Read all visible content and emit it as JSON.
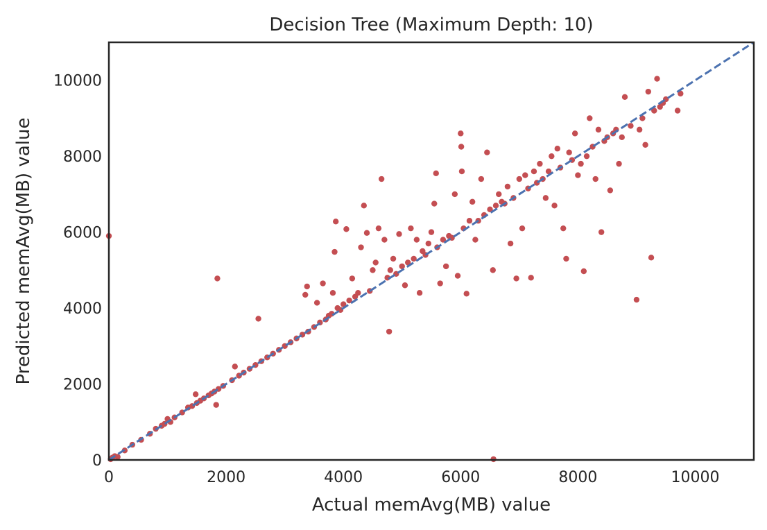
{
  "chart_data": {
    "type": "scatter",
    "title": "Decision Tree (Maximum Depth: 10)",
    "xlabel": "Actual memAvg(MB) value",
    "ylabel": "Predicted memAvg(MB) value",
    "xlim": [
      0,
      11000
    ],
    "ylim": [
      0,
      11000
    ],
    "xticks": [
      0,
      2000,
      4000,
      6000,
      8000,
      10000
    ],
    "yticks": [
      0,
      2000,
      4000,
      6000,
      8000,
      10000
    ],
    "xtick_labels": [
      "0",
      "2000",
      "4000",
      "6000",
      "8000",
      "10000"
    ],
    "ytick_labels": [
      "0",
      "2000",
      "4000",
      "6000",
      "8000",
      "10000"
    ],
    "grid": false,
    "legend": "none",
    "reference_line": {
      "style": "dashed",
      "from": [
        0,
        0
      ],
      "to": [
        11000,
        11000
      ],
      "color": "#4c72b0"
    },
    "point_color": "#c44e52",
    "series": [
      {
        "points": [
          [
            0,
            5900
          ],
          [
            30,
            20
          ],
          [
            60,
            60
          ],
          [
            100,
            100
          ],
          [
            150,
            80
          ],
          [
            270,
            250
          ],
          [
            400,
            400
          ],
          [
            550,
            530
          ],
          [
            700,
            690
          ],
          [
            800,
            820
          ],
          [
            900,
            900
          ],
          [
            950,
            950
          ],
          [
            1000,
            1080
          ],
          [
            1050,
            1000
          ],
          [
            1120,
            1120
          ],
          [
            1250,
            1250
          ],
          [
            1350,
            1380
          ],
          [
            1420,
            1420
          ],
          [
            1480,
            1730
          ],
          [
            1500,
            1500
          ],
          [
            1560,
            1560
          ],
          [
            1620,
            1620
          ],
          [
            1700,
            1700
          ],
          [
            1750,
            1750
          ],
          [
            1800,
            1800
          ],
          [
            1830,
            1450
          ],
          [
            1850,
            4780
          ],
          [
            1870,
            1870
          ],
          [
            1950,
            1950
          ],
          [
            2100,
            2100
          ],
          [
            2150,
            2460
          ],
          [
            2220,
            2220
          ],
          [
            2300,
            2300
          ],
          [
            2400,
            2400
          ],
          [
            2500,
            2500
          ],
          [
            2550,
            3720
          ],
          [
            2600,
            2600
          ],
          [
            2700,
            2700
          ],
          [
            2800,
            2800
          ],
          [
            2900,
            2900
          ],
          [
            3000,
            3000
          ],
          [
            3100,
            3100
          ],
          [
            3200,
            3200
          ],
          [
            3300,
            3300
          ],
          [
            3350,
            4350
          ],
          [
            3380,
            4570
          ],
          [
            3400,
            3380
          ],
          [
            3500,
            3500
          ],
          [
            3550,
            4140
          ],
          [
            3600,
            3620
          ],
          [
            3650,
            4650
          ],
          [
            3700,
            3700
          ],
          [
            3750,
            3800
          ],
          [
            3800,
            3850
          ],
          [
            3820,
            4400
          ],
          [
            3850,
            5480
          ],
          [
            3870,
            6280
          ],
          [
            3900,
            4000
          ],
          [
            3950,
            3950
          ],
          [
            4000,
            4100
          ],
          [
            4050,
            6080
          ],
          [
            4100,
            4200
          ],
          [
            4150,
            4780
          ],
          [
            4200,
            4300
          ],
          [
            4250,
            4400
          ],
          [
            4300,
            5600
          ],
          [
            4350,
            6700
          ],
          [
            4400,
            5980
          ],
          [
            4450,
            4450
          ],
          [
            4500,
            5000
          ],
          [
            4550,
            5200
          ],
          [
            4600,
            6100
          ],
          [
            4650,
            7400
          ],
          [
            4700,
            5800
          ],
          [
            4750,
            4800
          ],
          [
            4780,
            3380
          ],
          [
            4800,
            5000
          ],
          [
            4850,
            5300
          ],
          [
            4900,
            4900
          ],
          [
            4950,
            5950
          ],
          [
            5000,
            5100
          ],
          [
            5050,
            4600
          ],
          [
            5100,
            5200
          ],
          [
            5150,
            6100
          ],
          [
            5200,
            5300
          ],
          [
            5250,
            5800
          ],
          [
            5300,
            4400
          ],
          [
            5350,
            5500
          ],
          [
            5400,
            5400
          ],
          [
            5450,
            5700
          ],
          [
            5500,
            6000
          ],
          [
            5550,
            6750
          ],
          [
            5580,
            7550
          ],
          [
            5600,
            5600
          ],
          [
            5650,
            4650
          ],
          [
            5700,
            5800
          ],
          [
            5750,
            5100
          ],
          [
            5800,
            5900
          ],
          [
            5850,
            5850
          ],
          [
            5900,
            7000
          ],
          [
            5950,
            4850
          ],
          [
            6000,
            8600
          ],
          [
            6010,
            8250
          ],
          [
            6020,
            7600
          ],
          [
            6050,
            6100
          ],
          [
            6100,
            4380
          ],
          [
            6150,
            6300
          ],
          [
            6200,
            6800
          ],
          [
            6250,
            5800
          ],
          [
            6300,
            6300
          ],
          [
            6350,
            7400
          ],
          [
            6400,
            6450
          ],
          [
            6450,
            8100
          ],
          [
            6500,
            6600
          ],
          [
            6550,
            5000
          ],
          [
            6600,
            6700
          ],
          [
            6650,
            7000
          ],
          [
            6700,
            6800
          ],
          [
            6750,
            6750
          ],
          [
            6800,
            7200
          ],
          [
            6850,
            5700
          ],
          [
            6900,
            6900
          ],
          [
            6950,
            4780
          ],
          [
            7000,
            7400
          ],
          [
            7050,
            6100
          ],
          [
            7100,
            7500
          ],
          [
            7150,
            7150
          ],
          [
            7200,
            4800
          ],
          [
            7250,
            7600
          ],
          [
            7300,
            7300
          ],
          [
            7350,
            7800
          ],
          [
            7400,
            7400
          ],
          [
            7450,
            6900
          ],
          [
            7500,
            7600
          ],
          [
            7550,
            8000
          ],
          [
            7600,
            6700
          ],
          [
            7650,
            8200
          ],
          [
            7700,
            7700
          ],
          [
            7750,
            6100
          ],
          [
            7800,
            5300
          ],
          [
            7850,
            8100
          ],
          [
            7900,
            7900
          ],
          [
            7950,
            8600
          ],
          [
            8000,
            7500
          ],
          [
            8050,
            7800
          ],
          [
            8100,
            4970
          ],
          [
            8150,
            8000
          ],
          [
            8200,
            9000
          ],
          [
            8250,
            8250
          ],
          [
            8300,
            7400
          ],
          [
            8350,
            8700
          ],
          [
            8400,
            6000
          ],
          [
            8450,
            8400
          ],
          [
            8500,
            8500
          ],
          [
            8550,
            7100
          ],
          [
            8600,
            8600
          ],
          [
            8650,
            8700
          ],
          [
            8700,
            7800
          ],
          [
            8750,
            8500
          ],
          [
            8800,
            9560
          ],
          [
            8900,
            8800
          ],
          [
            9000,
            4220
          ],
          [
            9050,
            8700
          ],
          [
            9100,
            9000
          ],
          [
            9150,
            8300
          ],
          [
            9200,
            9700
          ],
          [
            9250,
            5330
          ],
          [
            9300,
            9200
          ],
          [
            9350,
            10040
          ],
          [
            9400,
            9300
          ],
          [
            9450,
            9400
          ],
          [
            9500,
            9500
          ],
          [
            9700,
            9200
          ],
          [
            9750,
            9650
          ],
          [
            6560,
            20
          ]
        ]
      }
    ]
  }
}
